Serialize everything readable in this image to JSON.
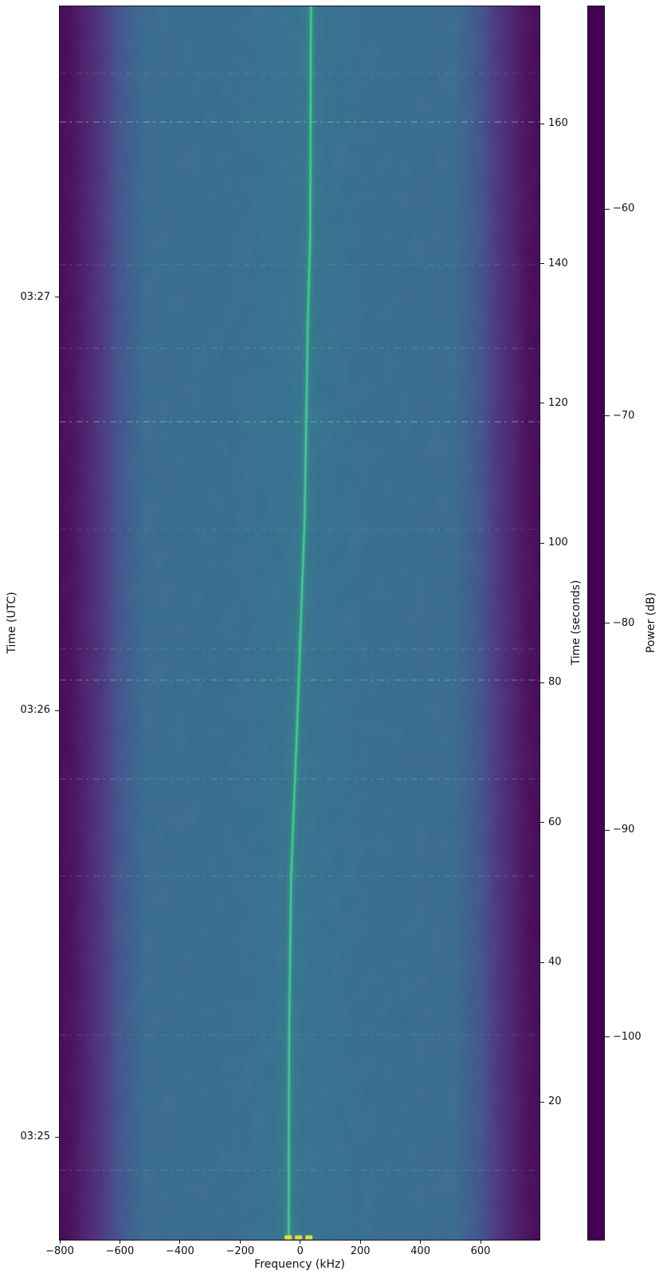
{
  "chart_data": {
    "type": "heatmap",
    "subtype": "radio-spectrogram-waterfall",
    "colormap": "viridis",
    "title": "",
    "xlabel": "Frequency (kHz)",
    "ylabel_left": "Time (UTC)",
    "ylabel_right": "Time (seconds)",
    "colorbar_label": "Power (dB)",
    "x_range_khz": [
      -800,
      796
    ],
    "x_ticks": [
      {
        "value": -800,
        "label": "−800"
      },
      {
        "value": -600,
        "label": "−600"
      },
      {
        "value": -400,
        "label": "−400"
      },
      {
        "value": -200,
        "label": "−200"
      },
      {
        "value": 0,
        "label": "0"
      },
      {
        "value": 200,
        "label": "200"
      },
      {
        "value": 400,
        "label": "400"
      },
      {
        "value": 600,
        "label": "600"
      }
    ],
    "y_range_seconds": [
      0.3,
      176.8
    ],
    "y_right_ticks": [
      {
        "value": 20,
        "label": "20"
      },
      {
        "value": 40,
        "label": "40"
      },
      {
        "value": 60,
        "label": "60"
      },
      {
        "value": 80,
        "label": "80"
      },
      {
        "value": 100,
        "label": "100"
      },
      {
        "value": 120,
        "label": "120"
      },
      {
        "value": 140,
        "label": "140"
      },
      {
        "value": 160,
        "label": "160"
      }
    ],
    "y_left_utc_ticks": [
      {
        "label": "03:25",
        "t": 15.0
      },
      {
        "label": "03:26",
        "t": 76.0
      },
      {
        "label": "03:27",
        "t": 135.2
      }
    ],
    "colorbar_range_db": [
      -109.8,
      -50.2
    ],
    "colorbar_ticks": [
      {
        "value": -60,
        "label": "−60"
      },
      {
        "value": -70,
        "label": "−70"
      },
      {
        "value": -80,
        "label": "−80"
      },
      {
        "value": -90,
        "label": "−90"
      },
      {
        "value": -100,
        "label": "−100"
      }
    ],
    "background_noise": {
      "passband_floor_db": -85,
      "stopband_floor_db": -108,
      "passband_halfwidth_khz": 700
    },
    "carrier_trace_t_f_khz": [
      [
        0.3,
        -38.4
      ],
      [
        29.4,
        -37.1
      ],
      [
        52.2,
        -30.5
      ],
      [
        75.0,
        -9.3
      ],
      [
        103.5,
        14.6
      ],
      [
        132.0,
        25.2
      ],
      [
        143.5,
        33.1
      ],
      [
        176.8,
        35.8
      ]
    ],
    "startup_burst": {
      "t": 0.5,
      "f_khz_range": [
        -52,
        42
      ]
    },
    "interference_lines": [
      {
        "t": 167.2,
        "strength": 0.1
      },
      {
        "t": 160.3,
        "strength": 0.3
      },
      {
        "t": 139.8,
        "strength": 0.1
      },
      {
        "t": 127.8,
        "strength": 0.14
      },
      {
        "t": 117.4,
        "strength": 0.3
      },
      {
        "t": 101.9,
        "strength": 0.1
      },
      {
        "t": 84.8,
        "strength": 0.12
      },
      {
        "t": 80.4,
        "strength": 0.24
      },
      {
        "t": 66.2,
        "strength": 0.16
      },
      {
        "t": 52.3,
        "strength": 0.13
      },
      {
        "t": 29.6,
        "strength": 0.1
      },
      {
        "t": 10.2,
        "strength": 0.13
      }
    ],
    "colors": {
      "trace": "#38d28a",
      "trace_glow": "#2fae7f",
      "interference": "#7de2bb",
      "burst_yellow": "#f2e423",
      "spine": "#141414",
      "viridis_stops": [
        "#440154",
        "#482475",
        "#414487",
        "#355f8d",
        "#2a788e",
        "#21918c",
        "#22a884",
        "#44bf70",
        "#7ad151",
        "#bddf26",
        "#fde725"
      ],
      "plot_bg_gradient": [
        {
          "pos": 0,
          "c": "#440154"
        },
        {
          "pos": 2.5,
          "c": "#45085a"
        },
        {
          "pos": 6,
          "c": "#481f6e"
        },
        {
          "pos": 9,
          "c": "#46327e"
        },
        {
          "pos": 12,
          "c": "#3d4e8a"
        },
        {
          "pos": 15,
          "c": "#365d8d"
        },
        {
          "pos": 18,
          "c": "#33688e"
        },
        {
          "pos": 32,
          "c": "#32688e"
        },
        {
          "pos": 50,
          "c": "#2f6f8e"
        },
        {
          "pos": 68,
          "c": "#32688e"
        },
        {
          "pos": 82,
          "c": "#33688e"
        },
        {
          "pos": 85,
          "c": "#365d8d"
        },
        {
          "pos": 88,
          "c": "#3d4e8a"
        },
        {
          "pos": 91,
          "c": "#46327e"
        },
        {
          "pos": 94,
          "c": "#481f6e"
        },
        {
          "pos": 97.5,
          "c": "#45085a"
        },
        {
          "pos": 100,
          "c": "#440154"
        }
      ]
    }
  }
}
